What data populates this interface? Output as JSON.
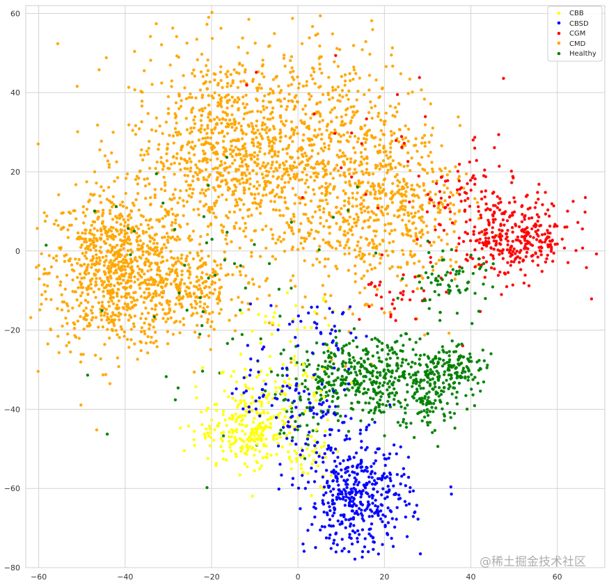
{
  "watermark": "@稀土掘金技术社区",
  "chart_data": {
    "type": "scatter",
    "title": "",
    "xlabel": "",
    "ylabel": "",
    "xlim": [
      -63,
      71
    ],
    "ylim": [
      -80,
      62
    ],
    "xticks": [
      -60,
      -40,
      -20,
      0,
      20,
      40,
      60
    ],
    "yticks": [
      60,
      40,
      20,
      0,
      -20,
      -40,
      -60,
      -80
    ],
    "x_tick_labels": [
      "−60",
      "−40",
      "−20",
      "0",
      "20",
      "40",
      "60"
    ],
    "y_tick_labels": [
      "60",
      "40",
      "20",
      "0",
      "−20",
      "−40",
      "−60",
      "−80"
    ],
    "grid": true,
    "legend_position": "top-right",
    "series": [
      {
        "name": "CBB",
        "color": "#ffff00",
        "clusters": [
          {
            "cx": -11,
            "cy": -45,
            "sx": 6,
            "sy": 5,
            "n": 260
          },
          {
            "cx": -4,
            "cy": -33,
            "sx": 6,
            "sy": 4,
            "n": 60
          },
          {
            "cx": 3,
            "cy": -52,
            "sx": 3,
            "sy": 4,
            "n": 40
          },
          {
            "cx": -2,
            "cy": -18,
            "sx": 6,
            "sy": 3,
            "n": 25
          }
        ]
      },
      {
        "name": "CBSD",
        "color": "#0000ff",
        "clusters": [
          {
            "cx": 14,
            "cy": -62,
            "sx": 6,
            "sy": 7,
            "n": 420
          },
          {
            "cx": 3,
            "cy": -42,
            "sx": 6,
            "sy": 5,
            "n": 80
          },
          {
            "cx": 4,
            "cy": -20,
            "sx": 8,
            "sy": 4,
            "n": 40
          },
          {
            "cx": -9,
            "cy": -35,
            "sx": 4,
            "sy": 3,
            "n": 20
          }
        ]
      },
      {
        "name": "CGM",
        "color": "#ff0000",
        "clusters": [
          {
            "cx": 50,
            "cy": 3,
            "sx": 7,
            "sy": 5,
            "n": 330
          },
          {
            "cx": 40,
            "cy": 15,
            "sx": 5,
            "sy": 5,
            "n": 60
          },
          {
            "cx": 22,
            "cy": 18,
            "sx": 15,
            "sy": 20,
            "n": 40
          },
          {
            "cx": 22,
            "cy": -12,
            "sx": 4,
            "sy": 3,
            "n": 30
          }
        ]
      },
      {
        "name": "CMD",
        "color": "#ffa500",
        "clusters": [
          {
            "cx": -42,
            "cy": -5,
            "sx": 8,
            "sy": 10,
            "n": 900
          },
          {
            "cx": -15,
            "cy": 25,
            "sx": 12,
            "sy": 13,
            "n": 1000
          },
          {
            "cx": 10,
            "cy": 20,
            "sx": 11,
            "sy": 16,
            "n": 700
          },
          {
            "cx": 25,
            "cy": 10,
            "sx": 7,
            "sy": 10,
            "n": 250
          },
          {
            "cx": -25,
            "cy": -10,
            "sx": 6,
            "sy": 5,
            "n": 200
          }
        ]
      },
      {
        "name": "Healthy",
        "color": "#008000",
        "clusters": [
          {
            "cx": 18,
            "cy": -32,
            "sx": 10,
            "sy": 5,
            "n": 480
          },
          {
            "cx": 35,
            "cy": -30,
            "sx": 4,
            "sy": 3,
            "n": 120
          },
          {
            "cx": 30,
            "cy": -40,
            "sx": 3,
            "sy": 4,
            "n": 50
          },
          {
            "cx": 35,
            "cy": -8,
            "sx": 5,
            "sy": 4,
            "n": 70
          },
          {
            "cx": -15,
            "cy": -10,
            "sx": 18,
            "sy": 15,
            "n": 60
          },
          {
            "cx": 0,
            "cy": -42,
            "sx": 4,
            "sy": 4,
            "n": 30
          }
        ]
      }
    ]
  }
}
